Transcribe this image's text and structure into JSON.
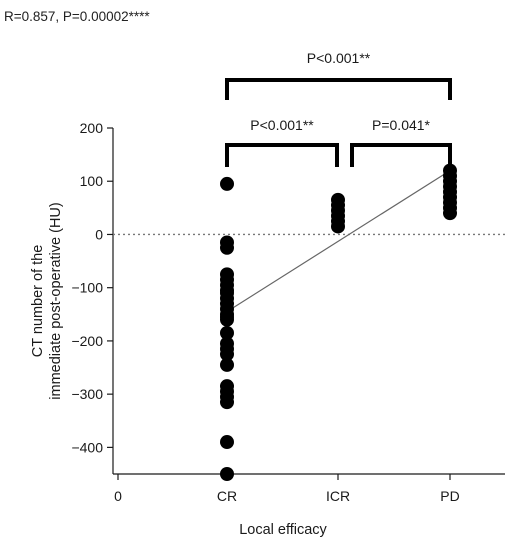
{
  "stat_text": "R=0.857, P=0.00002****",
  "chart_data": {
    "type": "scatter",
    "title": "",
    "xlabel": "Local efficacy",
    "ylabel": [
      "CT number of the",
      "immediate post-operative (HU)"
    ],
    "x_ticks": [
      "0",
      "CR",
      "ICR",
      "PD"
    ],
    "y_ticks": [
      200,
      100,
      0,
      -100,
      -200,
      -300,
      -400
    ],
    "ylim": [
      -450,
      200
    ],
    "reference_line_y": 0,
    "groups": [
      {
        "name": "CR",
        "x": 1,
        "values": [
          95,
          -15,
          -25,
          -75,
          -85,
          -95,
          -105,
          -110,
          -120,
          -130,
          -140,
          -150,
          -155,
          -160,
          -185,
          -205,
          -215,
          -225,
          -245,
          -285,
          -295,
          -305,
          -315,
          -390,
          -450
        ]
      },
      {
        "name": "ICR",
        "x": 2,
        "values": [
          65,
          55,
          45,
          35,
          25,
          15
        ]
      },
      {
        "name": "PD",
        "x": 3,
        "values": [
          120,
          110,
          100,
          90,
          80,
          70,
          60,
          50,
          40
        ]
      }
    ],
    "regression_line": {
      "x": [
        1,
        3
      ],
      "y": [
        -145,
        120
      ]
    },
    "comparisons": [
      {
        "from": "CR",
        "to": "ICR",
        "label": "P<0.001**"
      },
      {
        "from": "ICR",
        "to": "PD",
        "label": "P=0.041*"
      },
      {
        "from": "CR",
        "to": "PD",
        "label": "P<0.001**"
      }
    ]
  }
}
